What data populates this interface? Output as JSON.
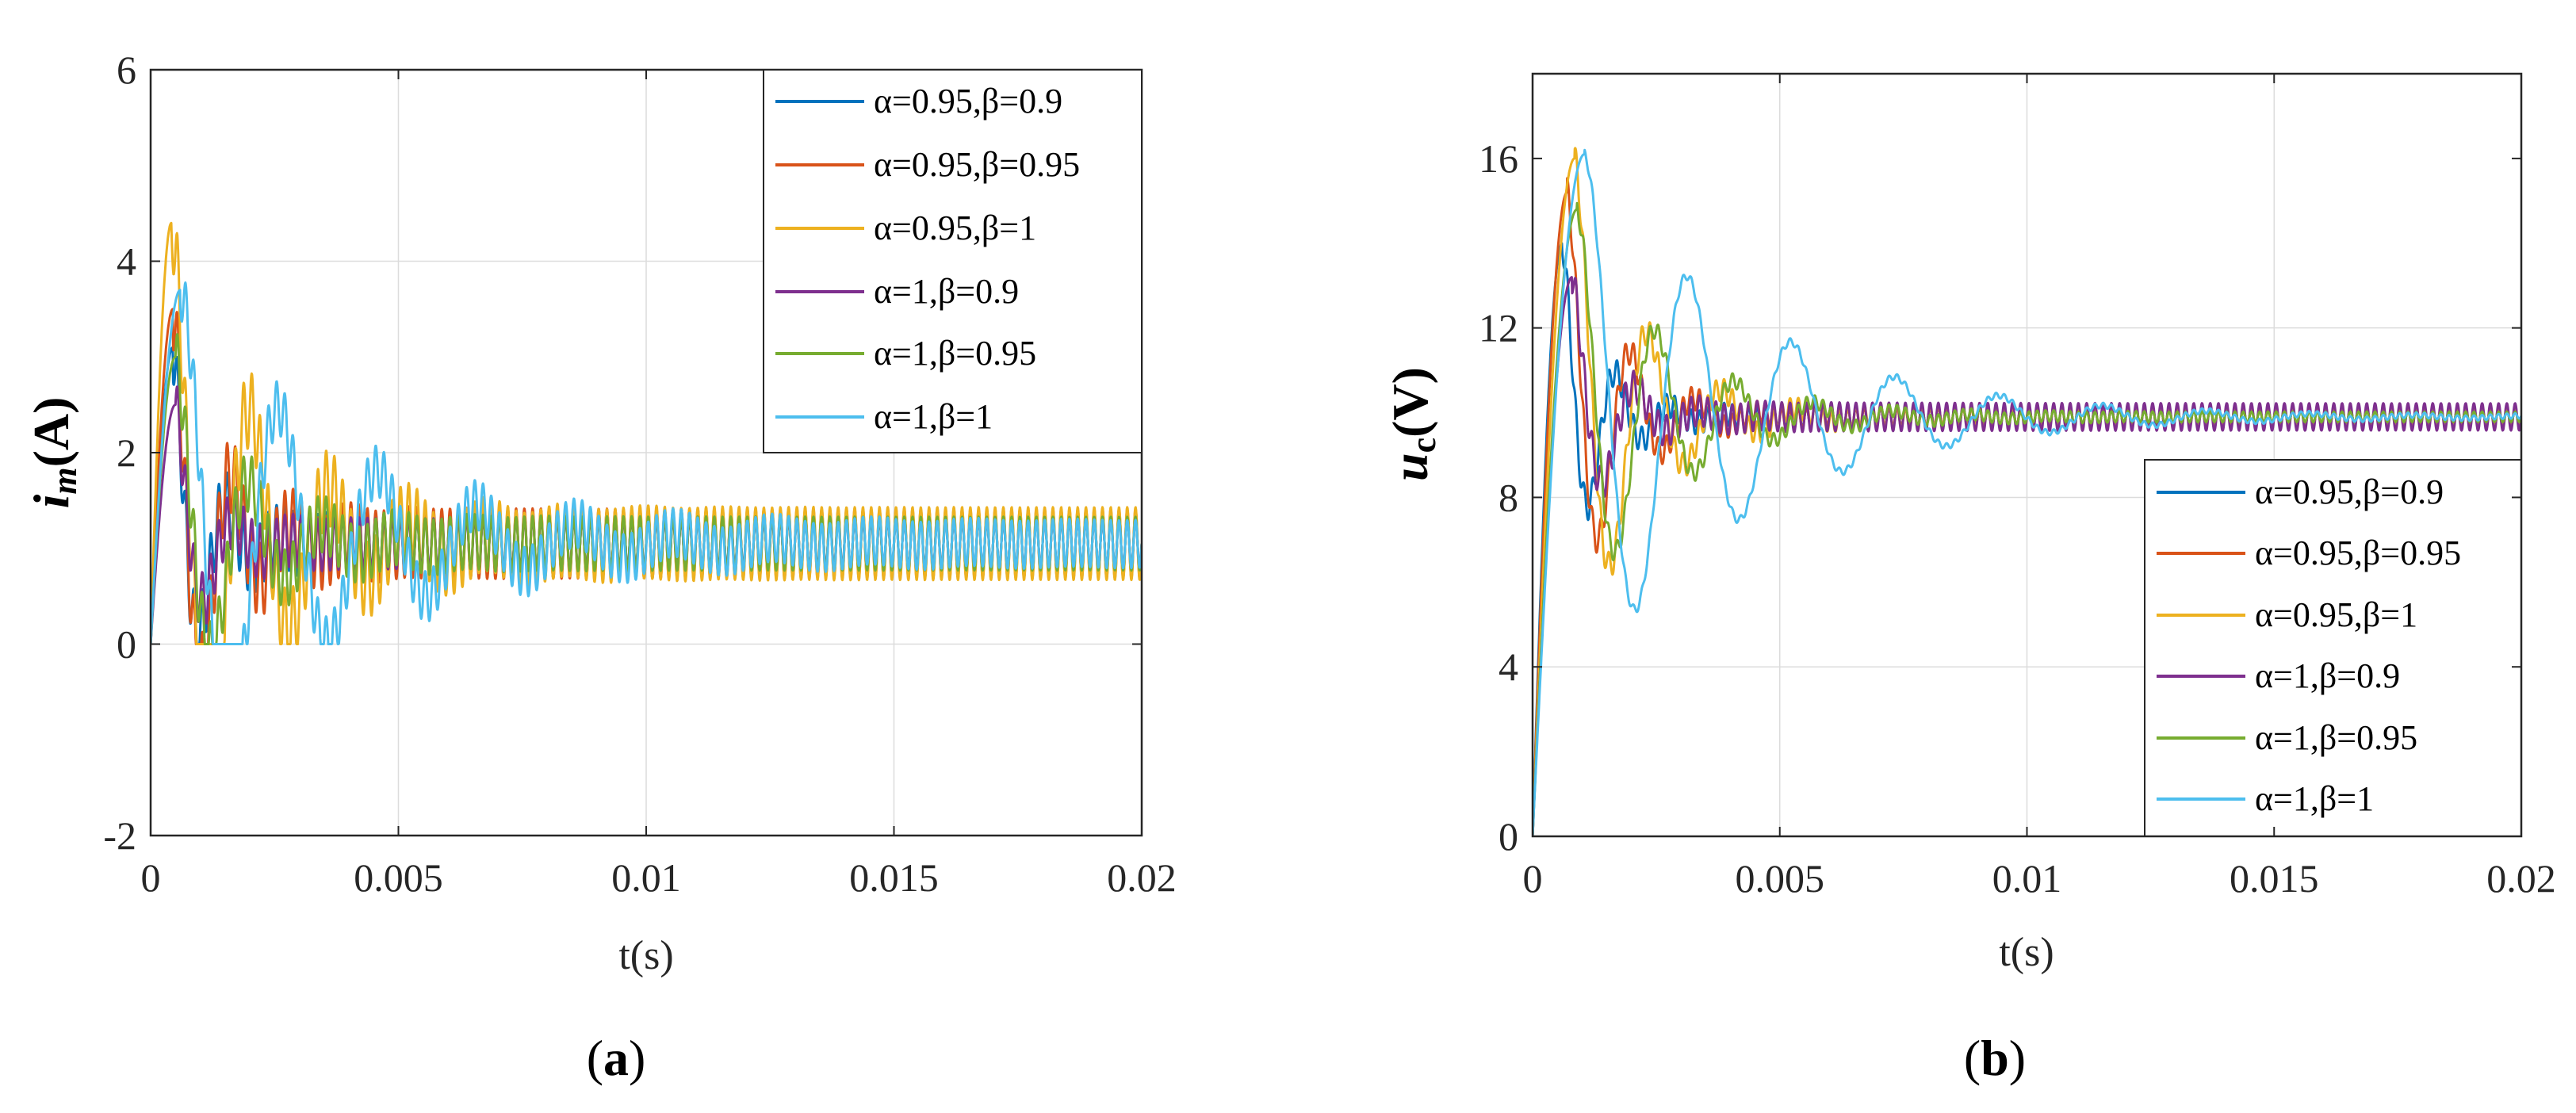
{
  "chart_data": [
    {
      "id": "a",
      "type": "line",
      "caption": "a",
      "xlabel": "t(s)",
      "ylabel_main": "i",
      "ylabel_sub": "m",
      "ylabel_unit": "(A)",
      "xlim": [
        0,
        0.02
      ],
      "ylim": [
        -2,
        6
      ],
      "xticks": [
        0,
        0.005,
        0.01,
        0.015,
        0.02
      ],
      "xtick_labels": [
        "0",
        "0.005",
        "0.01",
        "0.015",
        "0.02"
      ],
      "yticks": [
        -2,
        0,
        2,
        4,
        6
      ],
      "ytick_labels": [
        "-2",
        "0",
        "2",
        "4",
        "6"
      ],
      "grid": true,
      "legend_position": "top-right",
      "series": [
        {
          "name": "α=0.95,β=0.9",
          "color": "#0072BD",
          "peak": 3.1,
          "peak_t": 0.00045,
          "settle": 1.05,
          "zeta": 0.26,
          "period": 0.0011,
          "ripple": 0.35,
          "ripple_floor": 0.3
        },
        {
          "name": "α=0.95,β=0.95",
          "color": "#D95319",
          "peak": 3.5,
          "peak_t": 0.00045,
          "settle": 1.05,
          "zeta": 0.2,
          "period": 0.0012,
          "ripple": 0.4,
          "ripple_floor": 0.36
        },
        {
          "name": "α=0.95,β=1",
          "color": "#EDB120",
          "peak": 4.4,
          "peak_t": 0.00042,
          "settle": 1.05,
          "zeta": 0.14,
          "period": 0.0016,
          "ripple": 0.42,
          "ripple_floor": 0.38
        },
        {
          "name": "α=1,β=0.9",
          "color": "#7E2F8E",
          "peak": 2.5,
          "peak_t": 0.0005,
          "settle": 1.05,
          "zeta": 0.3,
          "period": 0.0012,
          "ripple": 0.3,
          "ripple_floor": 0.25
        },
        {
          "name": "α=1,β=0.95",
          "color": "#77AC30",
          "peak": 3.0,
          "peak_t": 0.0005,
          "settle": 1.05,
          "zeta": 0.18,
          "period": 0.0015,
          "ripple": 0.32,
          "ripple_floor": 0.28
        },
        {
          "name": "α=1,β=1",
          "color": "#4DBEEE",
          "peak": 3.7,
          "peak_t": 0.0006,
          "settle": 1.05,
          "zeta": 0.1,
          "period": 0.002,
          "ripple": 0.3,
          "ripple_floor": 0.25
        }
      ]
    },
    {
      "id": "b",
      "type": "line",
      "caption": "b",
      "xlabel": "t(s)",
      "ylabel_main": "u",
      "ylabel_sub": "c",
      "ylabel_unit": "(V)",
      "xlim": [
        0,
        0.02
      ],
      "ylim": [
        0,
        18
      ],
      "xticks": [
        0,
        0.005,
        0.01,
        0.015,
        0.02
      ],
      "xtick_labels": [
        "0",
        "0.005",
        "0.01",
        "0.015",
        "0.02"
      ],
      "yticks": [
        0,
        4,
        8,
        12,
        16
      ],
      "ytick_labels": [
        "0",
        "4",
        "8",
        "12",
        "16"
      ],
      "grid": true,
      "legend_position": "bottom-right",
      "series": [
        {
          "name": "α=0.95,β=0.9",
          "color": "#0072BD",
          "peak": 14.0,
          "peak_t": 0.0006,
          "settle": 9.9,
          "zeta": 0.22,
          "period": 0.0011,
          "ripple": 0.35,
          "ripple_floor": 0.2
        },
        {
          "name": "α=0.95,β=0.95",
          "color": "#D95319",
          "peak": 15.2,
          "peak_t": 0.0007,
          "settle": 9.9,
          "zeta": 0.2,
          "period": 0.0013,
          "ripple": 0.35,
          "ripple_floor": 0.2
        },
        {
          "name": "α=0.95,β=1",
          "color": "#EDB120",
          "peak": 16.0,
          "peak_t": 0.00085,
          "settle": 9.9,
          "zeta": 0.18,
          "period": 0.0015,
          "ripple": 0.35,
          "ripple_floor": 0.2
        },
        {
          "name": "α=1,β=0.9",
          "color": "#7E2F8E",
          "peak": 13.2,
          "peak_t": 0.0008,
          "settle": 9.9,
          "zeta": 0.25,
          "period": 0.0013,
          "ripple": 0.4,
          "ripple_floor": 0.32
        },
        {
          "name": "α=1,β=0.95",
          "color": "#77AC30",
          "peak": 14.8,
          "peak_t": 0.0009,
          "settle": 9.9,
          "zeta": 0.14,
          "period": 0.0016,
          "ripple": 0.25,
          "ripple_floor": 0.12
        },
        {
          "name": "α=1,β=1",
          "color": "#4DBEEE",
          "peak": 16.1,
          "peak_t": 0.00105,
          "settle": 9.9,
          "zeta": 0.1,
          "period": 0.0021,
          "ripple": 0.12,
          "ripple_floor": 0.06
        }
      ]
    }
  ]
}
